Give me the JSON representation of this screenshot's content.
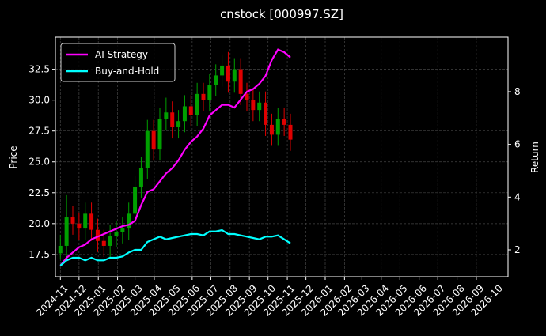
{
  "chart_data": {
    "type": "candlestick",
    "title": "cnstock [000997.SZ]",
    "ylabel": "Price",
    "y2label": "Return",
    "x": [
      "2024-11-01",
      "2024-11-11",
      "2024-11-21",
      "2024-12-01",
      "2024-12-11",
      "2024-12-21",
      "2024-12-31",
      "2025-01-10",
      "2025-01-20",
      "2025-01-30",
      "2025-02-09",
      "2025-02-19",
      "2025-03-01",
      "2025-03-11",
      "2025-03-21",
      "2025-03-31",
      "2025-04-10",
      "2025-04-20",
      "2025-04-30",
      "2025-05-10",
      "2025-05-20",
      "2025-05-30",
      "2025-06-09",
      "2025-06-19",
      "2025-06-29",
      "2025-07-09",
      "2025-07-19",
      "2025-07-29",
      "2025-08-08",
      "2025-08-18",
      "2025-08-28",
      "2025-09-07",
      "2025-09-17",
      "2025-09-27",
      "2025-10-07",
      "2025-10-17",
      "2025-10-27",
      "2025-11-06"
    ],
    "open": [
      17.6,
      18.2,
      20.5,
      20.0,
      19.6,
      20.8,
      19.5,
      18.6,
      18.2,
      19.0,
      19.3,
      19.6,
      20.8,
      23.0,
      24.5,
      27.5,
      26.0,
      28.5,
      29.0,
      27.8,
      28.3,
      29.5,
      28.8,
      30.5,
      30.0,
      31.2,
      32.0,
      32.8,
      31.5,
      32.5,
      30.5,
      30.0,
      29.2,
      29.8,
      28.0,
      27.2,
      28.5,
      28.0
    ],
    "high": [
      19.1,
      22.3,
      21.4,
      20.9,
      21.7,
      21.7,
      20.4,
      19.5,
      19.9,
      20.2,
      20.5,
      21.7,
      23.9,
      25.4,
      28.4,
      28.4,
      29.4,
      30.2,
      29.9,
      29.2,
      30.4,
      30.4,
      31.4,
      31.4,
      32.1,
      32.9,
      33.7,
      33.9,
      33.4,
      33.4,
      31.4,
      30.9,
      30.7,
      30.7,
      28.9,
      29.4,
      29.4,
      28.9
    ],
    "low": [
      17.1,
      17.3,
      19.1,
      18.7,
      18.7,
      18.6,
      17.7,
      17.3,
      17.3,
      18.1,
      18.4,
      18.7,
      19.9,
      22.1,
      23.6,
      25.1,
      25.1,
      27.6,
      26.9,
      26.9,
      27.4,
      27.9,
      27.9,
      29.1,
      29.1,
      30.3,
      31.1,
      30.6,
      30.6,
      29.6,
      29.1,
      28.3,
      28.3,
      27.1,
      26.3,
      26.3,
      27.1,
      25.9
    ],
    "close": [
      18.2,
      20.5,
      20.0,
      19.6,
      20.8,
      19.5,
      18.6,
      18.2,
      19.0,
      19.3,
      19.6,
      20.8,
      23.0,
      24.5,
      27.5,
      26.0,
      28.5,
      29.0,
      27.8,
      28.3,
      29.5,
      28.8,
      30.5,
      30.0,
      31.2,
      32.0,
      32.8,
      31.5,
      32.5,
      30.5,
      30.0,
      29.2,
      29.8,
      28.0,
      27.2,
      28.5,
      28.0,
      26.8
    ],
    "up_color": "#00a000",
    "down_color": "#e00000",
    "series": [
      {
        "name": "AI Strategy",
        "color": "#ff00ff",
        "axis": "y2",
        "values": [
          1.4,
          1.7,
          1.9,
          2.1,
          2.2,
          2.4,
          2.5,
          2.6,
          2.7,
          2.8,
          2.9,
          2.95,
          3.1,
          3.7,
          4.2,
          4.3,
          4.6,
          4.9,
          5.1,
          5.4,
          5.8,
          6.1,
          6.3,
          6.6,
          7.1,
          7.3,
          7.5,
          7.5,
          7.4,
          7.7,
          8.0,
          8.1,
          8.3,
          8.6,
          9.2,
          9.6,
          9.5,
          9.3
        ]
      },
      {
        "name": "Buy-and-Hold",
        "color": "#00ffff",
        "axis": "y2",
        "values": [
          1.4,
          1.6,
          1.7,
          1.7,
          1.6,
          1.7,
          1.6,
          1.6,
          1.7,
          1.7,
          1.75,
          1.9,
          2.0,
          2.0,
          2.3,
          2.4,
          2.5,
          2.4,
          2.45,
          2.5,
          2.55,
          2.6,
          2.6,
          2.55,
          2.7,
          2.7,
          2.75,
          2.6,
          2.6,
          2.55,
          2.5,
          2.45,
          2.4,
          2.5,
          2.5,
          2.55,
          2.4,
          2.25
        ]
      }
    ],
    "xlim": [
      "2024-10-24",
      "2026-10-22"
    ],
    "xticks": [
      {
        "value": "2024-11-01",
        "label": "2024-11"
      },
      {
        "value": "2024-12-01",
        "label": "2024-12"
      },
      {
        "value": "2025-01-01",
        "label": "2025-01"
      },
      {
        "value": "2025-02-01",
        "label": "2025-02"
      },
      {
        "value": "2025-03-01",
        "label": "2025-03"
      },
      {
        "value": "2025-04-01",
        "label": "2025-04"
      },
      {
        "value": "2025-05-01",
        "label": "2025-05"
      },
      {
        "value": "2025-06-01",
        "label": "2025-06"
      },
      {
        "value": "2025-07-01",
        "label": "2025-07"
      },
      {
        "value": "2025-08-01",
        "label": "2025-08"
      },
      {
        "value": "2025-09-01",
        "label": "2025-09"
      },
      {
        "value": "2025-10-01",
        "label": "2025-10"
      },
      {
        "value": "2025-11-01",
        "label": "2025-11"
      },
      {
        "value": "2025-12-01",
        "label": "2025-12"
      },
      {
        "value": "2026-01-01",
        "label": "2026-01"
      },
      {
        "value": "2026-02-01",
        "label": "2026-02"
      },
      {
        "value": "2026-03-01",
        "label": "2026-03"
      },
      {
        "value": "2026-04-01",
        "label": "2026-04"
      },
      {
        "value": "2026-05-01",
        "label": "2026-05"
      },
      {
        "value": "2026-06-01",
        "label": "2026-06"
      },
      {
        "value": "2026-07-01",
        "label": "2026-07"
      },
      {
        "value": "2026-08-01",
        "label": "2026-08"
      },
      {
        "value": "2026-09-01",
        "label": "2026-09"
      },
      {
        "value": "2026-10-01",
        "label": "2026-10"
      }
    ],
    "ylim": [
      15.7,
      35.1
    ],
    "yticks": [
      17.5,
      {
        "value": 20,
        "label": "20.0"
      },
      22.5,
      {
        "value": 25,
        "label": "25.0"
      },
      27.5,
      {
        "value": 30,
        "label": "30.0"
      },
      32.5
    ],
    "y2lim": [
      0.98,
      10.07
    ],
    "y2ticks": [
      2,
      4,
      6,
      8
    ],
    "grid": true,
    "legend": "upper left"
  }
}
